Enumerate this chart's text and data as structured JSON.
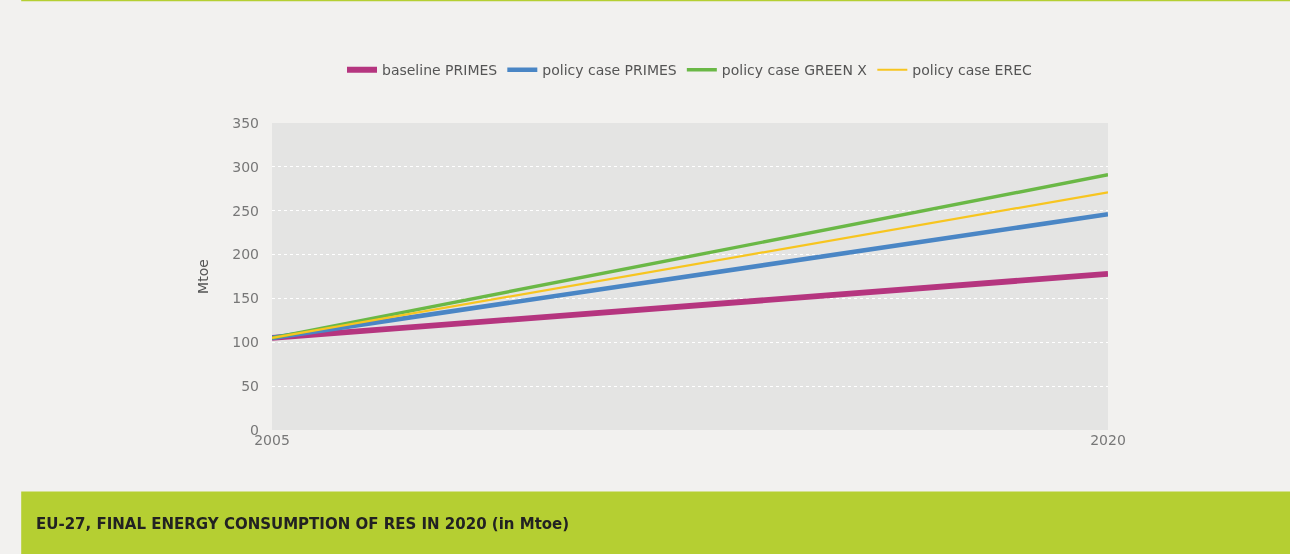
{
  "chart_data": {
    "type": "line",
    "title": "EU-27, FINAL ENERGY CONSUMPTION OF RES IN 2020 (in Mtoe)",
    "ylabel": "Mtoe",
    "x": [
      2005,
      2020
    ],
    "series": [
      {
        "name": "baseline PRIMES",
        "color": "#b5357f",
        "values": [
          105,
          178
        ]
      },
      {
        "name": "policy case PRIMES",
        "color": "#4a86c5",
        "values": [
          105,
          246
        ]
      },
      {
        "name": "policy case GREEN X",
        "color": "#6ab846",
        "values": [
          105,
          291
        ]
      },
      {
        "name": "policy case EREC",
        "color": "#f7c520",
        "values": [
          105,
          271
        ]
      }
    ],
    "xlim": [
      2005,
      2020
    ],
    "xticks": [
      2005,
      2020
    ],
    "ylim": [
      0,
      350
    ],
    "yticks": [
      0,
      50,
      100,
      150,
      200,
      250,
      300,
      350
    ],
    "grid": "y",
    "legend": "top",
    "marker": "none",
    "line_style": "solid"
  }
}
